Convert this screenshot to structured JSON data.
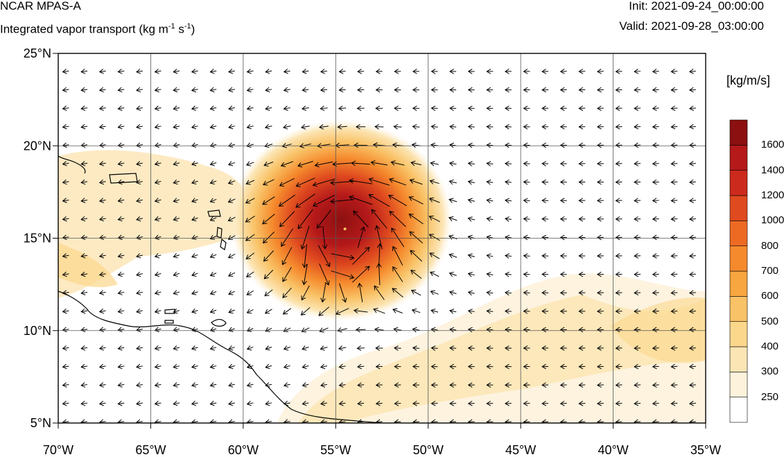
{
  "header": {
    "title": "NCAR MPAS-A",
    "subtitle_prefix": "Integrated vapor transport (kg m",
    "subtitle_sup1": "-1",
    "subtitle_mid": " s",
    "subtitle_sup2": "-1",
    "subtitle_suffix": ")",
    "init": "Init: 2021-09-24_00:00:00",
    "valid": "Valid: 2021-09-28_03:00:00"
  },
  "map": {
    "lon_range": [
      -70,
      -35
    ],
    "lat_range": [
      5,
      25
    ],
    "x_ticks": [
      "70°W",
      "65°W",
      "60°W",
      "55°W",
      "50°W",
      "45°W",
      "40°W",
      "35°W"
    ],
    "y_ticks": [
      "25°N",
      "20°N",
      "15°N",
      "10°N",
      "5°N"
    ],
    "gridlines": true,
    "storm_center": [
      -54.5,
      15.5
    ]
  },
  "colorbar": {
    "units": "[kg/m/s]",
    "levels": [
      "250",
      "300",
      "400",
      "500",
      "600",
      "700",
      "800",
      "1000",
      "1200",
      "1400",
      "1600"
    ],
    "colors": [
      "#ffffff",
      "#fdf2dc",
      "#fce5b4",
      "#fbd78c",
      "#f9c266",
      "#f7a640",
      "#f58a2d",
      "#ed6a23",
      "#df4a1f",
      "#cc2a1c",
      "#b5191a",
      "#8c1010"
    ]
  }
}
